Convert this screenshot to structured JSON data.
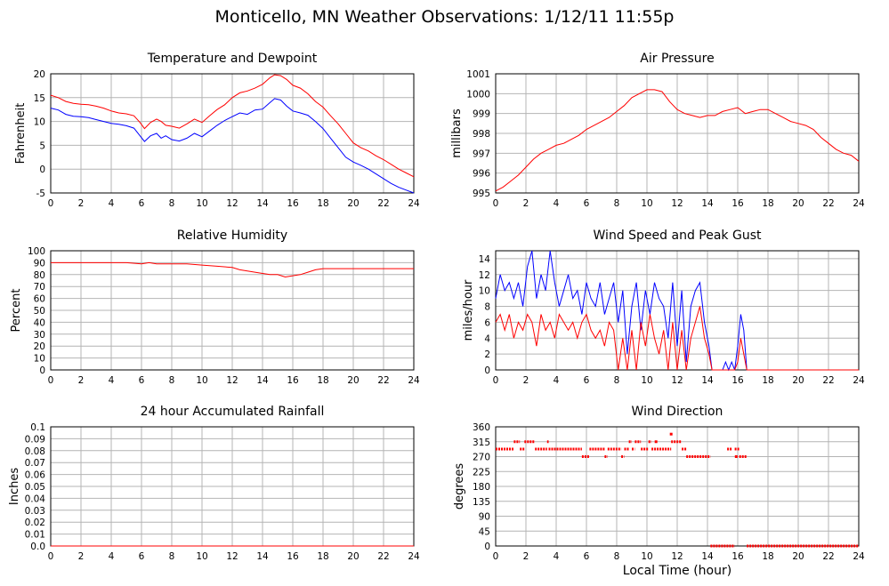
{
  "title": "Monticello, MN Weather Observations: 1/12/11 11:55p",
  "xlabel": "Local Time (hour)",
  "colors": {
    "series_red": "#ff0000",
    "series_blue": "#0000ff",
    "grid": "#b4b4b4"
  },
  "chart_data": [
    {
      "id": "temp",
      "type": "line",
      "title": "Temperature and Dewpoint",
      "ylabel": "Fahrenheit",
      "xlim": [
        0,
        24
      ],
      "ylim": [
        -5,
        20
      ],
      "xticks": [
        0,
        2,
        4,
        6,
        8,
        10,
        12,
        14,
        16,
        18,
        20,
        22,
        24
      ],
      "yticks": [
        -5,
        0,
        5,
        10,
        15,
        20
      ],
      "grid": true,
      "series": [
        {
          "color": "#ff0000",
          "x": [
            0,
            0.5,
            1,
            1.5,
            2,
            2.5,
            3,
            3.5,
            4,
            4.5,
            5,
            5.5,
            5.9,
            6.2,
            6.6,
            7,
            7.3,
            7.6,
            8,
            8.5,
            9,
            9.5,
            10,
            10.5,
            11,
            11.5,
            12,
            12.5,
            13,
            13.5,
            14,
            14.5,
            14.8,
            15.2,
            15.6,
            16,
            16.5,
            17,
            17.5,
            18,
            18.5,
            19,
            19.5,
            20,
            20.5,
            21,
            21.5,
            22,
            22.5,
            23,
            23.5,
            24
          ],
          "y": [
            15.5,
            15,
            14.2,
            13.8,
            13.6,
            13.5,
            13.2,
            12.8,
            12.2,
            11.8,
            11.6,
            11.2,
            9.8,
            8.5,
            9.8,
            10.5,
            10,
            9.2,
            9,
            8.6,
            9.5,
            10.5,
            9.8,
            11.2,
            12.5,
            13.5,
            15,
            16,
            16.4,
            17,
            17.8,
            19.2,
            19.8,
            19.6,
            18.8,
            17.6,
            17,
            15.8,
            14.2,
            13,
            11.2,
            9.5,
            7.5,
            5.5,
            4.5,
            3.8,
            2.8,
            2,
            1,
            0,
            -0.8,
            -1.6
          ]
        },
        {
          "color": "#0000ff",
          "x": [
            0,
            0.5,
            1,
            1.5,
            2,
            2.5,
            3,
            3.5,
            4,
            4.5,
            5,
            5.5,
            5.9,
            6.2,
            6.6,
            7,
            7.3,
            7.6,
            8,
            8.5,
            9,
            9.5,
            10,
            10.5,
            11,
            11.5,
            12,
            12.5,
            13,
            13.5,
            14,
            14.5,
            14.8,
            15.2,
            15.6,
            16,
            16.5,
            17,
            17.5,
            18,
            18.5,
            19,
            19.5,
            20,
            20.5,
            21,
            21.5,
            22,
            22.5,
            23,
            23.5,
            24
          ],
          "y": [
            12.8,
            12.4,
            11.5,
            11.1,
            11,
            10.8,
            10.4,
            10,
            9.6,
            9.4,
            9.1,
            8.6,
            7,
            5.8,
            7,
            7.5,
            6.5,
            7,
            6.2,
            5.9,
            6.5,
            7.5,
            6.8,
            8,
            9.2,
            10.2,
            11,
            11.8,
            11.5,
            12.4,
            12.6,
            14,
            14.8,
            14.5,
            13.2,
            12.2,
            11.8,
            11.3,
            10,
            8.5,
            6.5,
            4.5,
            2.5,
            1.5,
            0.8,
            0,
            -1,
            -2,
            -3,
            -3.8,
            -4.4,
            -5
          ]
        }
      ]
    },
    {
      "id": "pressure",
      "type": "line",
      "title": "Air Pressure",
      "ylabel": "millibars",
      "xlim": [
        0,
        24
      ],
      "ylim": [
        995,
        1001
      ],
      "xticks": [
        0,
        2,
        4,
        6,
        8,
        10,
        12,
        14,
        16,
        18,
        20,
        22,
        24
      ],
      "yticks": [
        995,
        996,
        997,
        998,
        999,
        1000,
        1001
      ],
      "grid": true,
      "series": [
        {
          "color": "#ff0000",
          "x": [
            0,
            0.5,
            1,
            1.5,
            2,
            2.5,
            3,
            3.5,
            4,
            4.5,
            5,
            5.5,
            6,
            6.5,
            7,
            7.5,
            8,
            8.5,
            9,
            9.5,
            10,
            10.5,
            11,
            11.5,
            12,
            12.5,
            13,
            13.5,
            14,
            14.5,
            15,
            15.5,
            16,
            16.5,
            17,
            17.5,
            18,
            18.5,
            19,
            19.5,
            20,
            20.5,
            21,
            21.5,
            22,
            22.5,
            23,
            23.5,
            24
          ],
          "y": [
            995.1,
            995.3,
            995.6,
            995.9,
            996.3,
            996.7,
            997.0,
            997.2,
            997.4,
            997.5,
            997.7,
            997.9,
            998.2,
            998.4,
            998.6,
            998.8,
            999.1,
            999.4,
            999.8,
            1000.0,
            1000.2,
            1000.2,
            1000.1,
            999.6,
            999.2,
            999.0,
            998.9,
            998.8,
            998.9,
            998.9,
            999.1,
            999.2,
            999.3,
            999.0,
            999.1,
            999.2,
            999.2,
            999.0,
            998.8,
            998.6,
            998.5,
            998.4,
            998.2,
            997.8,
            997.5,
            997.2,
            997.0,
            996.9,
            996.6
          ]
        }
      ]
    },
    {
      "id": "humidity",
      "type": "line",
      "title": "Relative Humidity",
      "ylabel": "Percent",
      "xlim": [
        0,
        24
      ],
      "ylim": [
        0,
        100
      ],
      "xticks": [
        0,
        2,
        4,
        6,
        8,
        10,
        12,
        14,
        16,
        18,
        20,
        22,
        24
      ],
      "yticks": [
        0,
        10,
        20,
        30,
        40,
        50,
        60,
        70,
        80,
        90,
        100
      ],
      "grid": true,
      "series": [
        {
          "color": "#ff0000",
          "x": [
            0,
            1,
            2,
            3,
            4,
            5,
            6,
            6.5,
            7,
            8,
            9,
            10,
            11,
            12,
            12.5,
            13,
            14,
            14.5,
            15,
            15.5,
            16,
            16.5,
            17,
            17.5,
            18,
            19,
            20,
            21,
            22,
            23,
            24
          ],
          "y": [
            90,
            90,
            90,
            90,
            90,
            90,
            89,
            90,
            89,
            89,
            89,
            88,
            87,
            86,
            84,
            83,
            81,
            80,
            80,
            78,
            79,
            80,
            82,
            84,
            85,
            85,
            85,
            85,
            85,
            85,
            85
          ]
        }
      ]
    },
    {
      "id": "wind",
      "type": "line",
      "title": "Wind Speed and Peak Gust",
      "ylabel": "miles/hour",
      "xlim": [
        0,
        24
      ],
      "ylim": [
        0,
        15
      ],
      "xticks": [
        0,
        2,
        4,
        6,
        8,
        10,
        12,
        14,
        16,
        18,
        20,
        22,
        24
      ],
      "yticks": [
        0,
        2,
        4,
        6,
        8,
        10,
        12,
        14
      ],
      "grid": true,
      "series": [
        {
          "color": "#0000ff",
          "x": [
            0,
            0.3,
            0.6,
            0.9,
            1.2,
            1.5,
            1.8,
            2.1,
            2.4,
            2.7,
            3.0,
            3.3,
            3.6,
            3.9,
            4.2,
            4.5,
            4.8,
            5.1,
            5.4,
            5.7,
            6.0,
            6.3,
            6.6,
            6.9,
            7.2,
            7.5,
            7.8,
            8.1,
            8.4,
            8.7,
            9.0,
            9.3,
            9.6,
            9.9,
            10.2,
            10.5,
            10.8,
            11.1,
            11.4,
            11.7,
            12.0,
            12.3,
            12.6,
            12.9,
            13.2,
            13.5,
            13.8,
            14.1,
            14.3,
            14.6,
            15.0,
            15.2,
            15.4,
            15.6,
            15.8,
            16.0,
            16.2,
            16.4,
            16.6,
            17,
            18,
            19,
            20,
            21,
            22,
            23,
            24
          ],
          "y": [
            9,
            12,
            10,
            11,
            9,
            11,
            8,
            13,
            15,
            9,
            12,
            10,
            15,
            11,
            8,
            10,
            12,
            9,
            10,
            7,
            11,
            9,
            8,
            11,
            7,
            9,
            11,
            6,
            10,
            2,
            8,
            11,
            5,
            10,
            7,
            11,
            9,
            8,
            4,
            11,
            3,
            10,
            1,
            8,
            10,
            11,
            6,
            3,
            0,
            0,
            0,
            1,
            0,
            1,
            0,
            3,
            7,
            5,
            0,
            0,
            0,
            0,
            0,
            0,
            0,
            0,
            0
          ]
        },
        {
          "color": "#ff0000",
          "x": [
            0,
            0.3,
            0.6,
            0.9,
            1.2,
            1.5,
            1.8,
            2.1,
            2.4,
            2.7,
            3.0,
            3.3,
            3.6,
            3.9,
            4.2,
            4.5,
            4.8,
            5.1,
            5.4,
            5.7,
            6.0,
            6.3,
            6.6,
            6.9,
            7.2,
            7.5,
            7.8,
            8.1,
            8.4,
            8.7,
            9.0,
            9.3,
            9.6,
            9.9,
            10.2,
            10.5,
            10.8,
            11.1,
            11.4,
            11.7,
            12.0,
            12.3,
            12.6,
            12.9,
            13.2,
            13.5,
            13.8,
            14.1,
            14.3,
            14.6,
            15.0,
            15.4,
            15.8,
            16.0,
            16.2,
            16.4,
            16.6,
            17,
            18,
            19,
            20,
            21,
            22,
            23,
            24
          ],
          "y": [
            6,
            7,
            5,
            7,
            4,
            6,
            5,
            7,
            6,
            3,
            7,
            5,
            6,
            4,
            7,
            6,
            5,
            6,
            4,
            6,
            7,
            5,
            4,
            5,
            3,
            6,
            5,
            0,
            4,
            0,
            5,
            0,
            6,
            3,
            7,
            4,
            2,
            5,
            0,
            6,
            0,
            5,
            0,
            4,
            6,
            8,
            4,
            2,
            0,
            0,
            0,
            0,
            0,
            1,
            4,
            2,
            0,
            0,
            0,
            0,
            0,
            0,
            0,
            0,
            0
          ]
        }
      ]
    },
    {
      "id": "rain",
      "type": "line",
      "title": "24 hour Accumulated Rainfall",
      "ylabel": "Inches",
      "xlim": [
        0,
        24
      ],
      "ylim": [
        0,
        0.1
      ],
      "xticks": [
        0,
        2,
        4,
        6,
        8,
        10,
        12,
        14,
        16,
        18,
        20,
        22,
        24
      ],
      "yticks": [
        "0.0",
        "0.01",
        "0.02",
        "0.03",
        "0.04",
        "0.05",
        "0.06",
        "0.07",
        "0.08",
        "0.09",
        "0.1"
      ],
      "grid": true,
      "series": [
        {
          "color": "#ff0000",
          "x": [
            0,
            24
          ],
          "y": [
            0,
            0
          ]
        }
      ]
    },
    {
      "id": "direction",
      "type": "scatter",
      "title": "Wind Direction",
      "ylabel": "degrees",
      "xlim": [
        0,
        24
      ],
      "ylim": [
        0,
        360
      ],
      "xticks": [
        0,
        2,
        4,
        6,
        8,
        10,
        12,
        14,
        16,
        18,
        20,
        22,
        24
      ],
      "yticks": [
        0,
        45,
        90,
        135,
        180,
        225,
        270,
        315,
        360
      ],
      "grid": true,
      "series": [
        {
          "color": "#ff0000",
          "segments": [
            {
              "x0": 0.0,
              "x1": 1.2,
              "y": 293
            },
            {
              "x0": 1.2,
              "x1": 1.6,
              "y": 315
            },
            {
              "x0": 1.6,
              "x1": 1.9,
              "y": 293
            },
            {
              "x0": 1.9,
              "x1": 2.6,
              "y": 315
            },
            {
              "x0": 2.6,
              "x1": 3.4,
              "y": 293
            },
            {
              "x0": 3.4,
              "x1": 3.5,
              "y": 315
            },
            {
              "x0": 3.5,
              "x1": 5.7,
              "y": 293
            },
            {
              "x0": 5.7,
              "x1": 6.2,
              "y": 270
            },
            {
              "x0": 6.2,
              "x1": 7.2,
              "y": 293
            },
            {
              "x0": 7.2,
              "x1": 7.4,
              "y": 270
            },
            {
              "x0": 7.4,
              "x1": 8.3,
              "y": 293
            },
            {
              "x0": 8.3,
              "x1": 8.5,
              "y": 270
            },
            {
              "x0": 8.5,
              "x1": 8.8,
              "y": 293
            },
            {
              "x0": 8.8,
              "x1": 9.0,
              "y": 315
            },
            {
              "x0": 9.0,
              "x1": 9.2,
              "y": 293
            },
            {
              "x0": 9.2,
              "x1": 9.6,
              "y": 315
            },
            {
              "x0": 9.6,
              "x1": 10.1,
              "y": 293
            },
            {
              "x0": 10.1,
              "x1": 10.3,
              "y": 315
            },
            {
              "x0": 10.3,
              "x1": 11.6,
              "y": 293
            },
            {
              "x0": 11.6,
              "x1": 12.3,
              "y": 315
            },
            {
              "x0": 12.3,
              "x1": 12.6,
              "y": 293
            },
            {
              "x0": 12.6,
              "x1": 14.2,
              "y": 270
            },
            {
              "x0": 14.2,
              "x1": 15.8,
              "y": 0
            },
            {
              "x0": 15.3,
              "x1": 15.6,
              "y": 293
            },
            {
              "x0": 15.8,
              "x1": 16.1,
              "y": 293
            },
            {
              "x0": 16.1,
              "x1": 16.6,
              "y": 270
            },
            {
              "x0": 16.6,
              "x1": 24.0,
              "y": 0
            }
          ],
          "points": [
            {
              "x": 11.6,
              "y": 338
            },
            {
              "x": 15.9,
              "y": 270
            },
            {
              "x": 10.6,
              "y": 315
            }
          ]
        }
      ]
    }
  ]
}
